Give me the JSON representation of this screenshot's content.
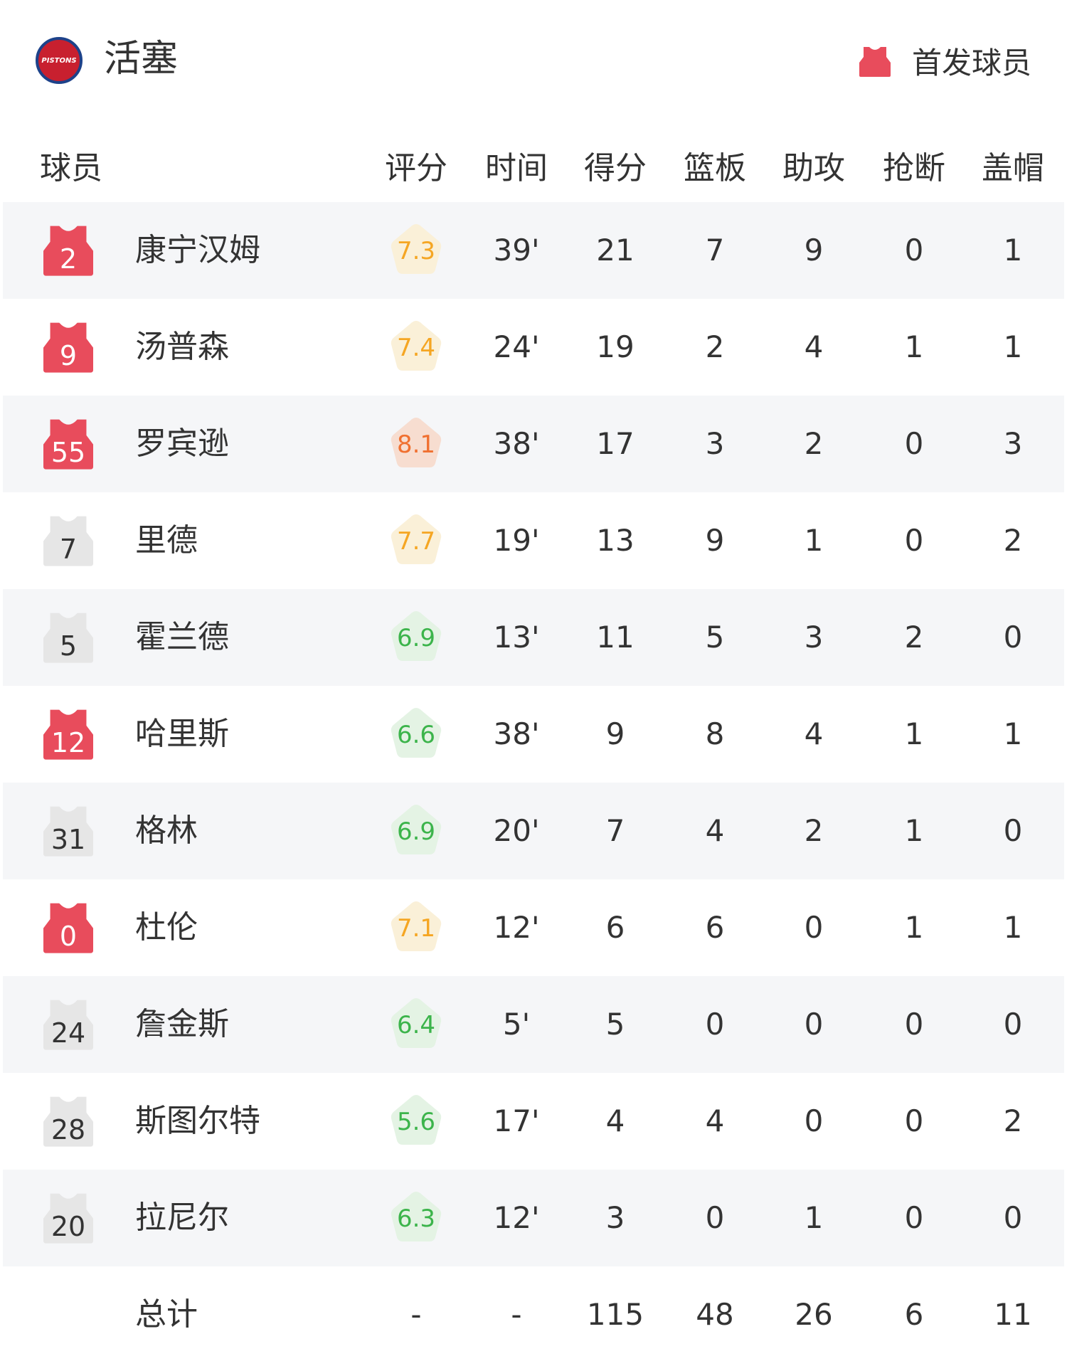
{
  "team": {
    "name": "活塞",
    "logo_text": "PISTONS"
  },
  "legend": {
    "label": "首发球员",
    "starter_color": "#e84c5c",
    "bench_color": "#e6e6e6"
  },
  "columns": [
    "球员",
    "评分",
    "时间",
    "得分",
    "篮板",
    "助攻",
    "抢断",
    "盖帽"
  ],
  "rating_colors": {
    "high": {
      "text": "#f07030",
      "bg": "#f7ddd0"
    },
    "mid": {
      "text": "#f5a623",
      "bg": "#faf0d8"
    },
    "low": {
      "text": "#3cb44b",
      "bg": "#e4f3e4"
    }
  },
  "players": [
    {
      "number": "2",
      "starter": true,
      "name": "康宁汉姆",
      "rating": "7.3",
      "tier": "mid",
      "min": "39'",
      "pts": "21",
      "reb": "7",
      "ast": "9",
      "stl": "0",
      "blk": "1"
    },
    {
      "number": "9",
      "starter": true,
      "name": "汤普森",
      "rating": "7.4",
      "tier": "mid",
      "min": "24'",
      "pts": "19",
      "reb": "2",
      "ast": "4",
      "stl": "1",
      "blk": "1"
    },
    {
      "number": "55",
      "starter": true,
      "name": "罗宾逊",
      "rating": "8.1",
      "tier": "high",
      "min": "38'",
      "pts": "17",
      "reb": "3",
      "ast": "2",
      "stl": "0",
      "blk": "3"
    },
    {
      "number": "7",
      "starter": false,
      "name": "里德",
      "rating": "7.7",
      "tier": "mid",
      "min": "19'",
      "pts": "13",
      "reb": "9",
      "ast": "1",
      "stl": "0",
      "blk": "2"
    },
    {
      "number": "5",
      "starter": false,
      "name": "霍兰德",
      "rating": "6.9",
      "tier": "low",
      "min": "13'",
      "pts": "11",
      "reb": "5",
      "ast": "3",
      "stl": "2",
      "blk": "0"
    },
    {
      "number": "12",
      "starter": true,
      "name": "哈里斯",
      "rating": "6.6",
      "tier": "low",
      "min": "38'",
      "pts": "9",
      "reb": "8",
      "ast": "4",
      "stl": "1",
      "blk": "1"
    },
    {
      "number": "31",
      "starter": false,
      "name": "格林",
      "rating": "6.9",
      "tier": "low",
      "min": "20'",
      "pts": "7",
      "reb": "4",
      "ast": "2",
      "stl": "1",
      "blk": "0"
    },
    {
      "number": "0",
      "starter": true,
      "name": "杜伦",
      "rating": "7.1",
      "tier": "mid",
      "min": "12'",
      "pts": "6",
      "reb": "6",
      "ast": "0",
      "stl": "1",
      "blk": "1"
    },
    {
      "number": "24",
      "starter": false,
      "name": "詹金斯",
      "rating": "6.4",
      "tier": "low",
      "min": "5'",
      "pts": "5",
      "reb": "0",
      "ast": "0",
      "stl": "0",
      "blk": "0"
    },
    {
      "number": "28",
      "starter": false,
      "name": "斯图尔特",
      "rating": "5.6",
      "tier": "low",
      "min": "17'",
      "pts": "4",
      "reb": "4",
      "ast": "0",
      "stl": "0",
      "blk": "2"
    },
    {
      "number": "20",
      "starter": false,
      "name": "拉尼尔",
      "rating": "6.3",
      "tier": "low",
      "min": "12'",
      "pts": "3",
      "reb": "0",
      "ast": "1",
      "stl": "0",
      "blk": "0"
    }
  ],
  "totals": {
    "label": "总计",
    "rating": "-",
    "min": "-",
    "pts": "115",
    "reb": "48",
    "ast": "26",
    "stl": "6",
    "blk": "11"
  }
}
